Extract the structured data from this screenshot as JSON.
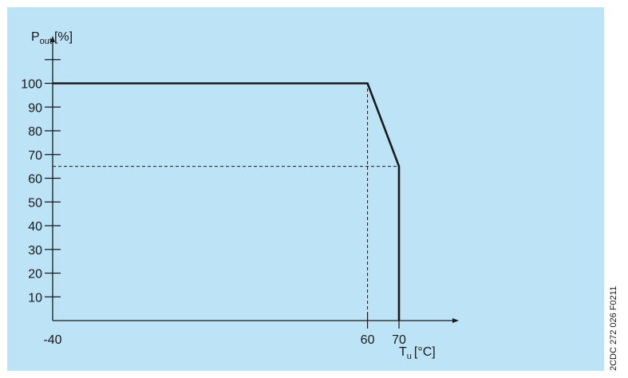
{
  "side_code": "2CDC 272 026 F0211",
  "colors": {
    "background": "#bde3f6",
    "line": "#1a1a1a"
  },
  "chart_data": {
    "type": "line",
    "title": "",
    "ylabel": {
      "main": "P",
      "sub": "out",
      "unit": "[%]"
    },
    "xlabel": {
      "main": "T",
      "sub": "u",
      "unit": "[°C]"
    },
    "x_ticks": [
      {
        "value": -40,
        "label": "-40"
      },
      {
        "value": 60,
        "label": "60"
      },
      {
        "value": 70,
        "label": "70"
      }
    ],
    "y_ticks": [
      {
        "value": 10,
        "label": "10"
      },
      {
        "value": 20,
        "label": "20"
      },
      {
        "value": 30,
        "label": "30"
      },
      {
        "value": 40,
        "label": "40"
      },
      {
        "value": 50,
        "label": "50"
      },
      {
        "value": 60,
        "label": "60"
      },
      {
        "value": 70,
        "label": "70"
      },
      {
        "value": 80,
        "label": "80"
      },
      {
        "value": 90,
        "label": "90"
      },
      {
        "value": 100,
        "label": "100"
      },
      {
        "value": 110,
        "label": ""
      }
    ],
    "xlim": [
      -40,
      89
    ],
    "ylim": [
      0,
      120
    ],
    "grid": false,
    "series": [
      {
        "x": [
          -40,
          60,
          70,
          70
        ],
        "y": [
          100,
          100,
          65,
          0
        ]
      }
    ],
    "reference_lines": [
      {
        "x": [
          60,
          60
        ],
        "y": [
          0,
          100
        ]
      },
      {
        "x": [
          -40,
          70
        ],
        "y": [
          65,
          65
        ]
      }
    ]
  }
}
